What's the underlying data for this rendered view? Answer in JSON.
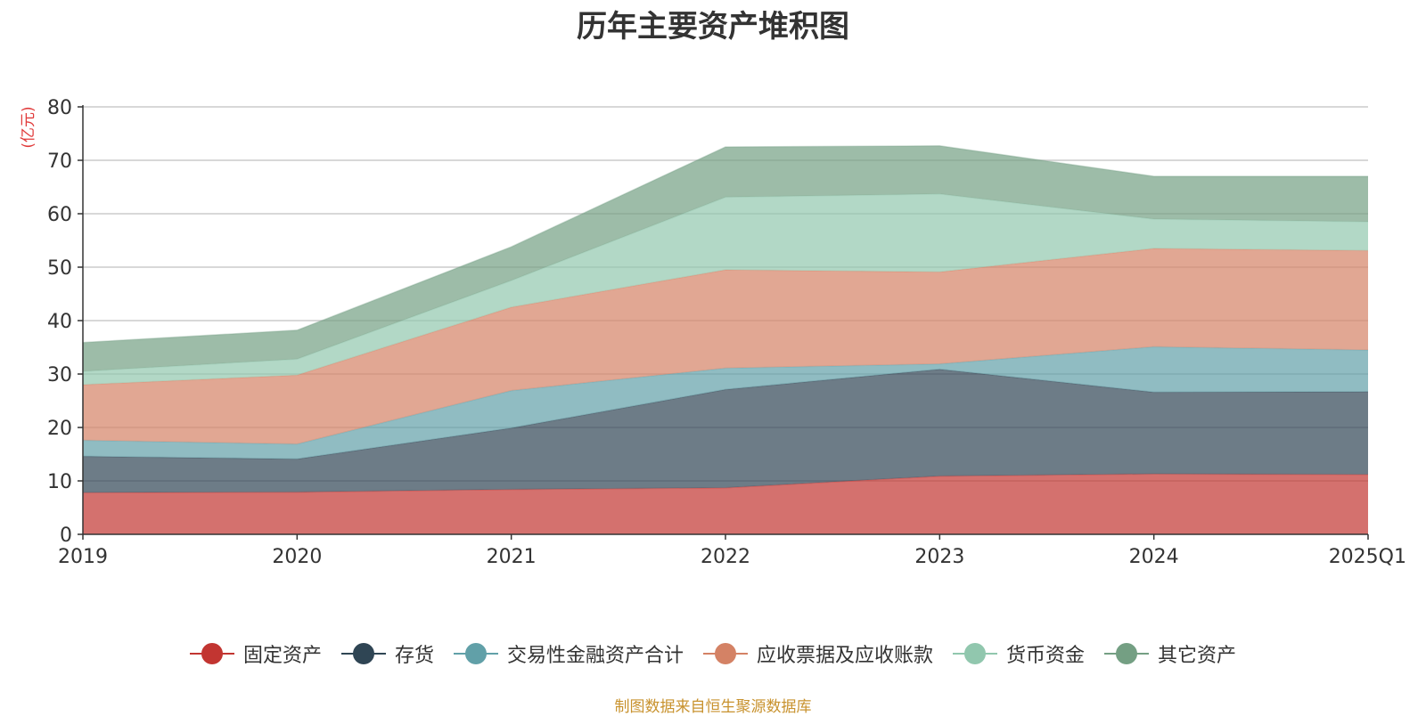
{
  "chart_data": {
    "type": "area",
    "stacked": true,
    "title": "历年主要资产堆积图",
    "ylabel": "(亿元)",
    "xlabel": "",
    "categories": [
      "2019",
      "2020",
      "2021",
      "2022",
      "2023",
      "2024",
      "2025Q1"
    ],
    "ylim": [
      0,
      80
    ],
    "yticks": [
      0,
      10,
      20,
      30,
      40,
      50,
      60,
      70,
      80
    ],
    "grid": true,
    "legend_position": "bottom",
    "series": [
      {
        "name": "固定资产",
        "color": "#c23531",
        "values": [
          7.8,
          7.9,
          8.4,
          8.7,
          10.9,
          11.3,
          11.2
        ]
      },
      {
        "name": "存货",
        "color": "#2f4554",
        "values": [
          6.8,
          6.2,
          11.5,
          18.4,
          20.0,
          15.3,
          15.5
        ]
      },
      {
        "name": "交易性金融资产合计",
        "color": "#61a0a8",
        "values": [
          3.0,
          2.8,
          7.0,
          4.0,
          1.0,
          8.5,
          7.8
        ]
      },
      {
        "name": "应收票据及应收账款",
        "color": "#d48265",
        "values": [
          10.4,
          12.9,
          15.6,
          18.4,
          17.2,
          18.4,
          18.6
        ]
      },
      {
        "name": "货币资金",
        "color": "#91c7ae",
        "values": [
          2.5,
          3.0,
          5.0,
          13.6,
          14.6,
          5.5,
          5.4
        ]
      },
      {
        "name": "其它资产",
        "color": "#749f83",
        "values": [
          5.4,
          5.4,
          6.3,
          9.4,
          9.0,
          8.0,
          8.5
        ]
      }
    ]
  },
  "source_note": "制图数据来自恒生聚源数据库"
}
